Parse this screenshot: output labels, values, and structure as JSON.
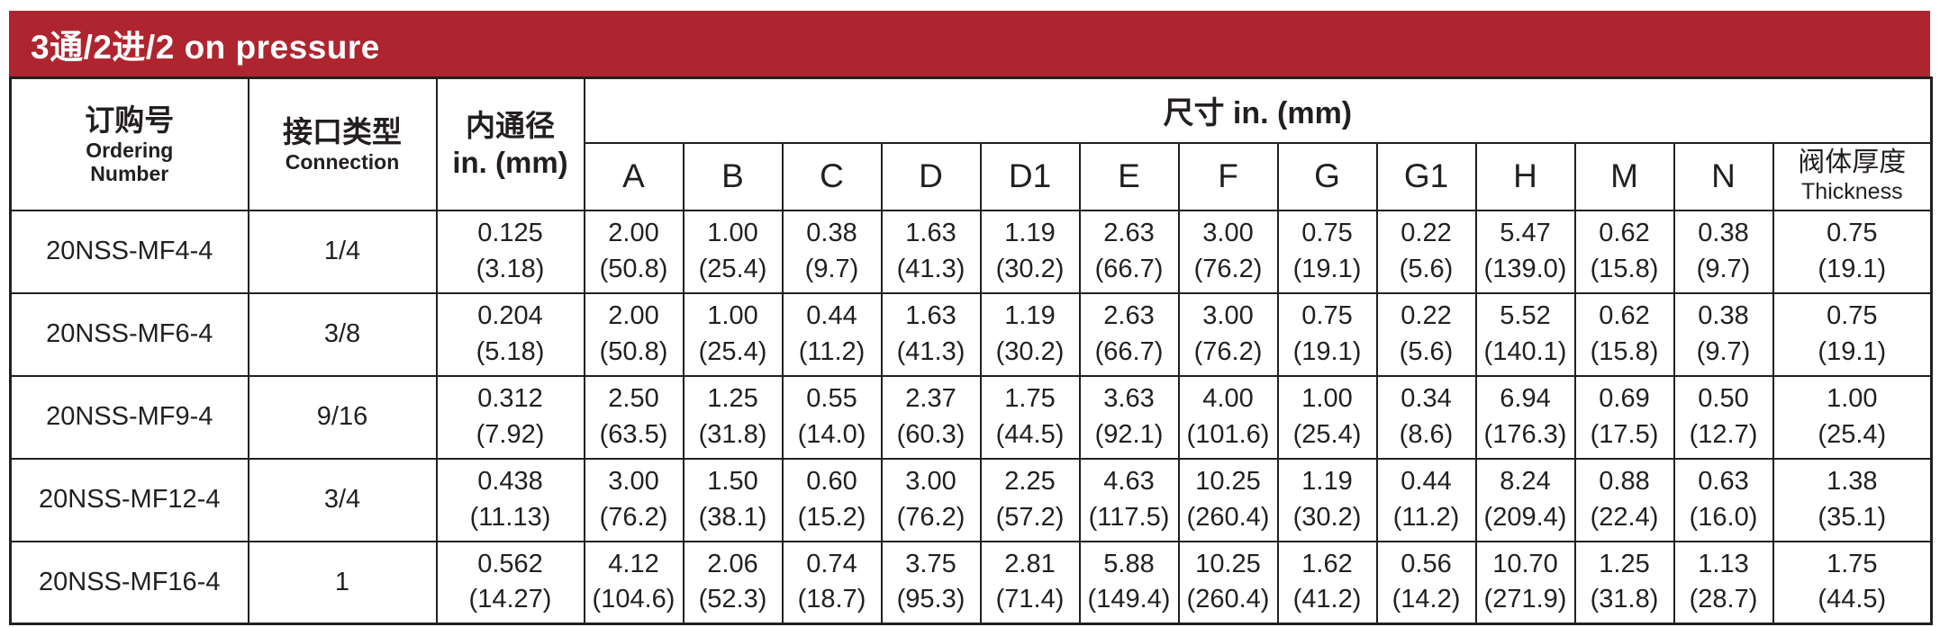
{
  "banner": {
    "title": "3通/2进/2 on pressure",
    "bg_color": "#ae2530",
    "text_color": "#ffffff"
  },
  "table": {
    "header": {
      "ordering": {
        "zh": "订购号",
        "en1": "Ordering",
        "en2": "Number"
      },
      "connection": {
        "zh": "接口类型",
        "en": "Connection"
      },
      "bore": {
        "line1": "内通径",
        "line2": "in. (mm)"
      },
      "dims_group": "尺寸 in. (mm)",
      "dim_columns": [
        "A",
        "B",
        "C",
        "D",
        "D1",
        "E",
        "F",
        "G",
        "G1",
        "H",
        "M",
        "N"
      ],
      "thickness": {
        "zh": "阀体厚度",
        "en": "Thickness"
      }
    },
    "rows": [
      {
        "ordering": "20NSS-MF4-4",
        "connection": "1/4",
        "bore": [
          "0.125",
          "(3.18)"
        ],
        "dims": [
          [
            "2.00",
            "(50.8)"
          ],
          [
            "1.00",
            "(25.4)"
          ],
          [
            "0.38",
            "(9.7)"
          ],
          [
            "1.63",
            "(41.3)"
          ],
          [
            "1.19",
            "(30.2)"
          ],
          [
            "2.63",
            "(66.7)"
          ],
          [
            "3.00",
            "(76.2)"
          ],
          [
            "0.75",
            "(19.1)"
          ],
          [
            "0.22",
            "(5.6)"
          ],
          [
            "5.47",
            "(139.0)"
          ],
          [
            "0.62",
            "(15.8)"
          ],
          [
            "0.38",
            "(9.7)"
          ]
        ],
        "thickness": [
          "0.75",
          "(19.1)"
        ]
      },
      {
        "ordering": "20NSS-MF6-4",
        "connection": "3/8",
        "bore": [
          "0.204",
          "(5.18)"
        ],
        "dims": [
          [
            "2.00",
            "(50.8)"
          ],
          [
            "1.00",
            "(25.4)"
          ],
          [
            "0.44",
            "(11.2)"
          ],
          [
            "1.63",
            "(41.3)"
          ],
          [
            "1.19",
            "(30.2)"
          ],
          [
            "2.63",
            "(66.7)"
          ],
          [
            "3.00",
            "(76.2)"
          ],
          [
            "0.75",
            "(19.1)"
          ],
          [
            "0.22",
            "(5.6)"
          ],
          [
            "5.52",
            "(140.1)"
          ],
          [
            "0.62",
            "(15.8)"
          ],
          [
            "0.38",
            "(9.7)"
          ]
        ],
        "thickness": [
          "0.75",
          "(19.1)"
        ]
      },
      {
        "ordering": "20NSS-MF9-4",
        "connection": "9/16",
        "bore": [
          "0.312",
          "(7.92)"
        ],
        "dims": [
          [
            "2.50",
            "(63.5)"
          ],
          [
            "1.25",
            "(31.8)"
          ],
          [
            "0.55",
            "(14.0)"
          ],
          [
            "2.37",
            "(60.3)"
          ],
          [
            "1.75",
            "(44.5)"
          ],
          [
            "3.63",
            "(92.1)"
          ],
          [
            "4.00",
            "(101.6)"
          ],
          [
            "1.00",
            "(25.4)"
          ],
          [
            "0.34",
            "(8.6)"
          ],
          [
            "6.94",
            "(176.3)"
          ],
          [
            "0.69",
            "(17.5)"
          ],
          [
            "0.50",
            "(12.7)"
          ]
        ],
        "thickness": [
          "1.00",
          "(25.4)"
        ]
      },
      {
        "ordering": "20NSS-MF12-4",
        "connection": "3/4",
        "bore": [
          "0.438",
          "(11.13)"
        ],
        "dims": [
          [
            "3.00",
            "(76.2)"
          ],
          [
            "1.50",
            "(38.1)"
          ],
          [
            "0.60",
            "(15.2)"
          ],
          [
            "3.00",
            "(76.2)"
          ],
          [
            "2.25",
            "(57.2)"
          ],
          [
            "4.63",
            "(117.5)"
          ],
          [
            "10.25",
            "(260.4)"
          ],
          [
            "1.19",
            "(30.2)"
          ],
          [
            "0.44",
            "(11.2)"
          ],
          [
            "8.24",
            "(209.4)"
          ],
          [
            "0.88",
            "(22.4)"
          ],
          [
            "0.63",
            "(16.0)"
          ]
        ],
        "thickness": [
          "1.38",
          "(35.1)"
        ]
      },
      {
        "ordering": "20NSS-MF16-4",
        "connection": "1",
        "bore": [
          "0.562",
          "(14.27)"
        ],
        "dims": [
          [
            "4.12",
            "(104.6)"
          ],
          [
            "2.06",
            "(52.3)"
          ],
          [
            "0.74",
            "(18.7)"
          ],
          [
            "3.75",
            "(95.3)"
          ],
          [
            "2.81",
            "(71.4)"
          ],
          [
            "5.88",
            "(149.4)"
          ],
          [
            "10.25",
            "(260.4)"
          ],
          [
            "1.62",
            "(41.2)"
          ],
          [
            "0.56",
            "(14.2)"
          ],
          [
            "10.70",
            "(271.9)"
          ],
          [
            "1.25",
            "(31.8)"
          ],
          [
            "1.13",
            "(28.7)"
          ]
        ],
        "thickness": [
          "1.75",
          "(44.5)"
        ]
      }
    ]
  }
}
